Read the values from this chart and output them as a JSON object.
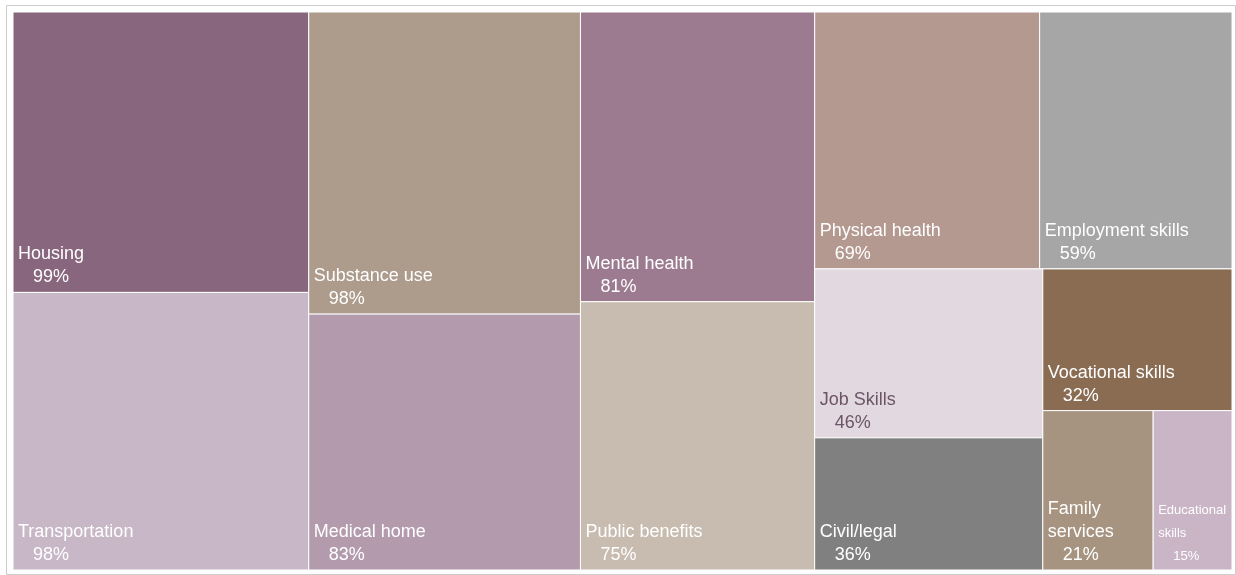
{
  "chart_data": {
    "type": "other",
    "categories": [
      "Housing",
      "Transportation",
      "Substance use",
      "Medical home",
      "Mental health",
      "Public benefits",
      "Physical health",
      "Employment skills",
      "Job Skills",
      "Civil/legal",
      "Vocational skills",
      "Family services",
      "Educational skills"
    ],
    "values": [
      99,
      98,
      98,
      83,
      81,
      75,
      69,
      59,
      46,
      36,
      32,
      21,
      15
    ],
    "value_labels": [
      "99%",
      "98%",
      "98%",
      "83%",
      "81%",
      "75%",
      "69%",
      "59%",
      "46%",
      "36%",
      "32%",
      "21%",
      "15%"
    ],
    "colors": [
      "#87667e",
      "#c8b8c7",
      "#ad9b8b",
      "#b39bad",
      "#9c7b90",
      "#c8bbaf",
      "#b49991",
      "#a6a6a6",
      "#e2d8e0",
      "#808080",
      "#8a6c53",
      "#a69480",
      "#c9b5c6"
    ]
  }
}
